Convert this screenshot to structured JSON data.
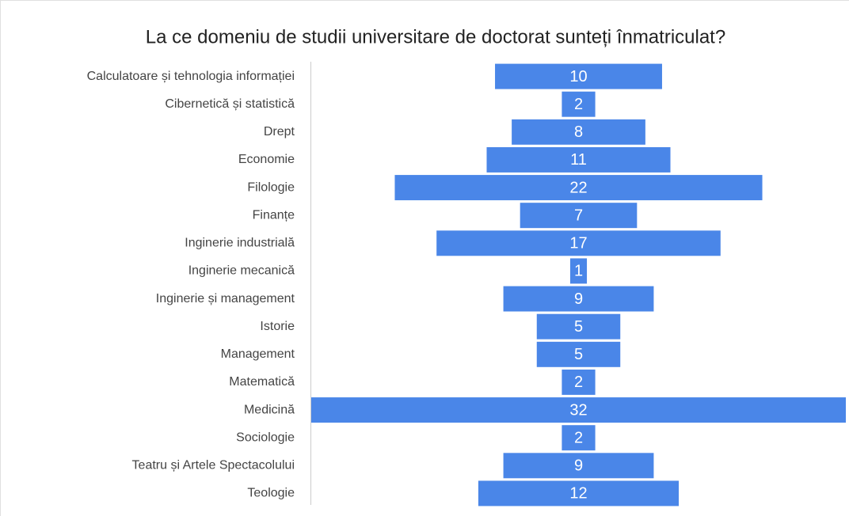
{
  "chart_data": {
    "type": "funnel",
    "title": "La ce domeniu de studii universitare de doctorat sunteți înmatriculat?",
    "categories": [
      "Calculatoare și tehnologia informației",
      "Cibernetică și statistică",
      "Drept",
      "Economie",
      "Filologie",
      "Finanțe",
      "Inginerie industrială",
      "Inginerie mecanică",
      "Inginerie și management",
      "Istorie",
      "Management",
      "Matematică",
      "Medicină",
      "Sociologie",
      "Teatru și Artele Spectacolului",
      "Teologie"
    ],
    "values": [
      10,
      2,
      8,
      11,
      22,
      7,
      17,
      1,
      9,
      5,
      5,
      2,
      32,
      2,
      9,
      12
    ],
    "color": "#4a86e8"
  }
}
